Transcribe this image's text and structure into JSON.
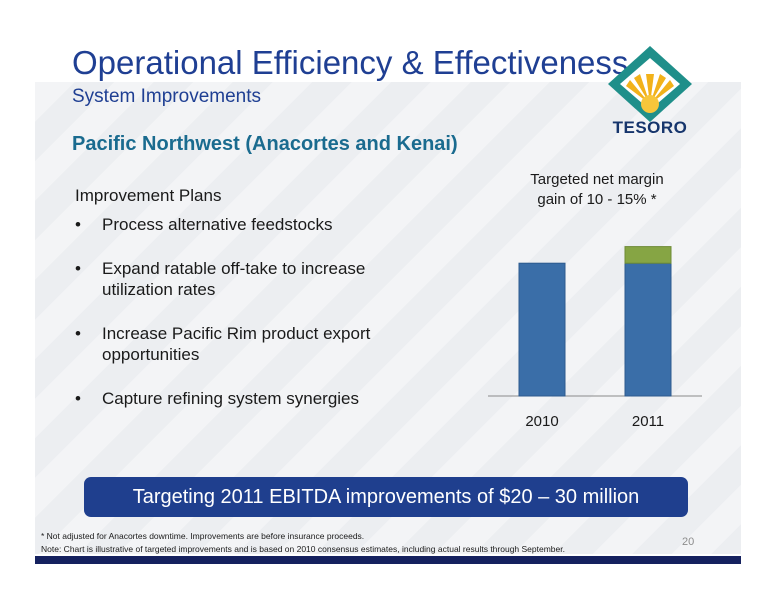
{
  "title": "Operational Efficiency & Effectiveness",
  "subtitle": "System Improvements",
  "section": "Pacific Northwest (Anacortes and Kenai)",
  "logo_text": "TESORO",
  "plans": {
    "heading": "Improvement Plans",
    "items": [
      "Process alternative feedstocks",
      "Expand ratable off-take to increase utilization rates",
      "Increase Pacific Rim product export opportunities",
      "Capture  refining system synergies"
    ]
  },
  "chart_title": [
    "Targeted net margin",
    "gain of 10 - 15% *"
  ],
  "chart_data": {
    "type": "bar",
    "categories": [
      "2010",
      "2011"
    ],
    "series": [
      {
        "values": [
          100,
          100
        ],
        "color": "#3a6ea8"
      },
      {
        "values": [
          0,
          12.5
        ],
        "color": "#86a544"
      }
    ],
    "stacked": true,
    "ylim": [
      0,
      125
    ]
  },
  "banner": "Targeting 2011 EBITDA improvements of $20 – 30 million",
  "footnote": "* Not adjusted for Anacortes downtime. Improvements are before insurance proceeds.",
  "note": "Note:  Chart is illustrative of targeted improvements and is based on 2010 consensus estimates, including actual results through September.",
  "page_number": "20",
  "colors": {
    "title": "#1f3f93",
    "section": "#1a6b8f",
    "banner": "#1f3f8e",
    "bottom_rule": "#15215f"
  }
}
